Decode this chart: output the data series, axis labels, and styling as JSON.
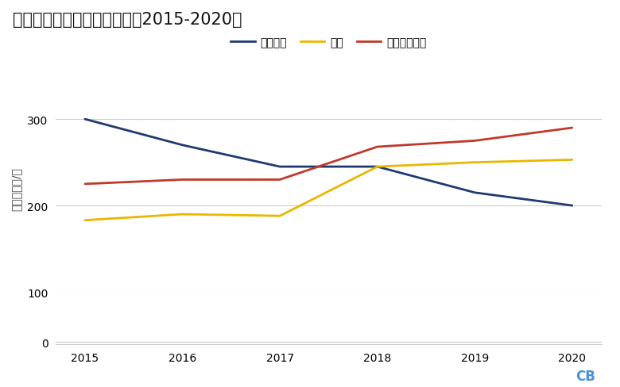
{
  "title": "河北省粗钢产能的变化情况（2015-2020）",
  "ylabel": "百万吨粗钢/年",
  "years": [
    2015,
    2016,
    2017,
    2018,
    2019,
    2020
  ],
  "series": [
    {
      "name": "上报产能",
      "color": "#1e3a6e",
      "values": [
        300,
        270,
        245,
        245,
        215,
        200
      ]
    },
    {
      "name": "产量",
      "color": "#e8b800",
      "values": [
        183,
        190,
        188,
        245,
        250,
        253
      ]
    },
    {
      "name": "最低实际产能",
      "color": "#c0392b",
      "values": [
        225,
        230,
        230,
        268,
        275,
        290
      ]
    }
  ],
  "yticks": [
    0,
    100,
    200,
    300
  ],
  "ylim": [
    0,
    340
  ],
  "xlim": [
    2014.7,
    2020.3
  ],
  "background_color": "#ffffff",
  "grid_color": "#cccccc",
  "title_fontsize": 15,
  "legend_fontsize": 10,
  "axis_fontsize": 10,
  "line_width": 2.0
}
